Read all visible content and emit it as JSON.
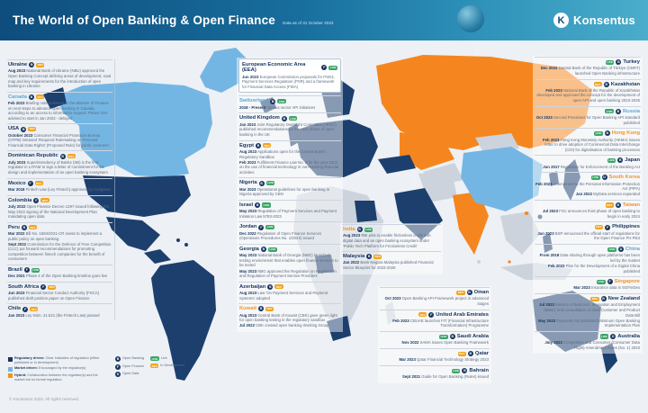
{
  "header": {
    "title": "The World of Open Banking & Open Finance",
    "subtitle": "Data as of 31 October 2023",
    "brand": "Konsentus",
    "brand_initial": "K"
  },
  "footer": "© Konsentus 2023. All rights reserved.",
  "colors": {
    "regulatory": "#16355f",
    "market": "#5aa7dc",
    "hybrid": "#f0941f",
    "live": "#3ba568",
    "development": "#f2a41f",
    "header_blue": "#0e4d7d",
    "map_orange": "#f5861f",
    "map_navy": "#1c3f6e",
    "map_light_blue": "#74b6e3"
  },
  "legend": {
    "drivers": [
      {
        "label": "Regulatory driven:",
        "desc": "Clear indication of regulation (either published or in development)",
        "color": "#16355f"
      },
      {
        "label": "Market driven:",
        "desc": "Encouraged by the regulator(s)",
        "color": "#74b6e3"
      },
      {
        "label": "Hybrid:",
        "desc": "Collaboration between the regulator(s) and the market but no formal regulation",
        "color": "#f0941f"
      }
    ],
    "types": [
      {
        "label": "Open Banking",
        "abbr": "B"
      },
      {
        "label": "Open Finance",
        "abbr": "F"
      },
      {
        "label": "Open Data",
        "abbr": "D"
      }
    ],
    "statuses": [
      {
        "label": "Live",
        "abbr": "LIVE",
        "color": "#3ba568"
      },
      {
        "label": "In Development",
        "abbr": "DEV",
        "color": "#f2a41f"
      }
    ]
  },
  "columns": {
    "left": [
      {
        "name": "Ukraine",
        "driver": "regulatory",
        "type": "B",
        "status": "In Development",
        "lines": [
          {
            "d": "Aug 2023",
            "t": "National Bank of Ukraine (NBU) approved the Open Banking Concept defining areas of development, road map and key requirements for the introduction of open banking in Ukraine"
          }
        ]
      },
      {
        "name": "Canada",
        "driver": "market",
        "type": "B",
        "status": "In Development",
        "lines": [
          {
            "d": "Feb 2023",
            "t": "Briefing note delivered to the Minister of Finance on next steps to advance open banking in Canada, according to an access to information request. Phase One advised to start in Jan 2023 - delayed"
          }
        ]
      },
      {
        "name": "USA",
        "driver": "regulatory",
        "type": "B",
        "status": "In Development",
        "lines": [
          {
            "d": "October 2023",
            "t": "Consumer Financial Protection Bureau (CFPB) released 'Required Rulemaking on Personal Financial Data Rights' (Proposed Rule) for public comment"
          }
        ]
      },
      {
        "name": "Dominican Republic",
        "driver": "regulatory",
        "type": "B",
        "status": "In Development",
        "lines": [
          {
            "d": "July 2023",
            "t": "Superintendency of Banks (SB) is the first regulator in LATAM to sign a letter of commitment for the design and implementation of an open banking ecosystem"
          }
        ]
      },
      {
        "name": "Mexico",
        "driver": "regulatory",
        "type": "F",
        "status": "In Development",
        "lines": [
          {
            "d": "Mar 2018",
            "t": "Fintech Law (Ley Fintech) approved by Congress"
          }
        ]
      },
      {
        "name": "Colombia",
        "driver": "regulatory",
        "type": "F",
        "status": "In Development",
        "lines": [
          {
            "d": "July 2022",
            "t": "Open Finance Decree 1297 issued following the May 2022 signing of the National Development Plan mandating open data"
          }
        ]
      },
      {
        "name": "Peru",
        "driver": "regulatory",
        "type": "B",
        "status": "In Development",
        "lines": [
          {
            "d": "Mar 2022",
            "t": "Bill No. 1584/2021-CR seeks to implement a public policy on open banking"
          },
          {
            "d": "Sept 2022",
            "t": "Commission for the Defence of Free Competition (CLC) put forward recommendations for promoting competition between fintech companies for the benefit of consumers"
          }
        ]
      },
      {
        "name": "Brazil",
        "driver": "regulatory",
        "type": "F",
        "status": "Live",
        "lines": [
          {
            "d": "Dec 2021",
            "t": "Phase 4 of the Open Banking timeline goes live"
          }
        ]
      },
      {
        "name": "South Africa",
        "driver": "regulatory",
        "type": "F",
        "status": "In Development",
        "lines": [
          {
            "d": "Jun 2023",
            "t": "Financial Sector Conduct Authority (FSCA) published draft position paper on Open Finance"
          }
        ]
      },
      {
        "name": "Chile",
        "driver": "regulatory",
        "type": "F",
        "status": "In Development",
        "lines": [
          {
            "d": "Jan 2023",
            "t": "Ley Núm. 21.521 (the Fintech Law) passed"
          }
        ]
      }
    ],
    "center": [
      {
        "name": "European Economic Area (EEA)",
        "driver": "regulatory",
        "type": "F",
        "status": "Live",
        "card": true,
        "lines": [
          {
            "d": "Jun 2023",
            "t": "European Commission proposals for PSD3, Payment Services Regulation (PSR) and a framework for Financial Data Access (FIDA)"
          }
        ]
      },
      {
        "name": "Switzerland",
        "driver": "market",
        "type": "B",
        "status": "Live",
        "lines": [
          {
            "d": "2018 - Present",
            "t": "Various sector API initiatives"
          }
        ]
      },
      {
        "name": "United Kingdom",
        "driver": "regulatory",
        "type": "B",
        "status": "Live",
        "lines": [
          {
            "d": "Jan 2023",
            "t": "Joint Regulatory Oversight Committee (JROC) published recommendations for the next phase of open banking in the UK"
          }
        ]
      },
      {
        "name": "Egypt",
        "driver": "regulatory",
        "type": "B",
        "status": "In Development",
        "lines": [
          {
            "d": "Aug 2023",
            "t": "Applications open for the Central Bank's Regulatory Sandbox"
          },
          {
            "d": "Feb 2023",
            "t": "Fulfilment Finance Law No. 5 for the year 2022 on the use of financial technology in non-banking financial activities"
          }
        ]
      },
      {
        "name": "Nigeria",
        "driver": "regulatory",
        "type": "B",
        "status": "Live",
        "lines": [
          {
            "d": "Mar 2023",
            "t": "Operational guidelines for open banking in Nigeria approved by CBN"
          }
        ]
      },
      {
        "name": "Israel",
        "driver": "regulatory",
        "type": "B",
        "status": "Live",
        "lines": [
          {
            "d": "May 2023",
            "t": "Regulation of Payment Services and Payment Initiation Law 5783-2023"
          }
        ]
      },
      {
        "name": "Jordan",
        "driver": "regulatory",
        "type": "F",
        "status": "Live",
        "lines": [
          {
            "d": "Dec 2022",
            "t": "Regulation of Open Finance Services (Operations Procedures No. 1/2022) issued"
          }
        ]
      },
      {
        "name": "Georgia",
        "driver": "regulatory",
        "type": "B",
        "status": "Live",
        "lines": [
          {
            "d": "May 2023",
            "t": "National Bank of Georgia (NBG) launched testing environment that enables open finance services to be tested"
          },
          {
            "d": "May 2023",
            "t": "NBG approved the Regulation on Registration and Regulation of Payment Service Providers"
          }
        ]
      },
      {
        "name": "Azerbaijan",
        "driver": "regulatory",
        "type": "B",
        "status": "In Development",
        "lines": [
          {
            "d": "Aug 2023",
            "t": "Law 'On Payment Services and Payment Systems' adopted"
          }
        ]
      },
      {
        "name": "Kuwait",
        "driver": "hybrid",
        "type": "B",
        "status": "In Development",
        "lines": [
          {
            "d": "Aug 2023",
            "t": "Central Bank of Kuwait (CBK) gave green light for open banking testing in the regulatory sandbox"
          },
          {
            "d": "Jul 2022",
            "t": "CBK created open banking Working Group"
          }
        ]
      }
    ],
    "south_asia": [
      {
        "name": "India",
        "driver": "hybrid",
        "type": "B",
        "status": "Live",
        "lines": [
          {
            "d": "Aug 2023",
            "t": "RBI pilot to enable frictionless credit with digital data and an open banking ecosystem under 'Public Tech Platform for Frictionless Credit'"
          }
        ]
      },
      {
        "name": "Malaysia",
        "driver": "regulatory",
        "type": "B",
        "status": "In Development",
        "lines": [
          {
            "d": "Jan 2022",
            "t": "Bank Negara Malaysia published Financial Sector Blueprint for 2022-2026"
          }
        ]
      }
    ],
    "gulf": [
      {
        "name": "Oman",
        "driver": "regulatory",
        "type": "B",
        "status": "In Development",
        "lines": [
          {
            "d": "Oct 2023",
            "t": "Open Banking API Framework project in advanced stages"
          }
        ]
      },
      {
        "name": "United Arab Emirates",
        "driver": "regulatory",
        "type": "F",
        "status": "In Development",
        "lines": [
          {
            "d": "Feb 2023",
            "t": "CBUAE launches FIT (Financial Infrastructure Transformation) Programme"
          }
        ]
      },
      {
        "name": "Saudi Arabia",
        "driver": "regulatory",
        "type": "B",
        "status": "Live",
        "lines": [
          {
            "d": "Nov 2022",
            "t": "SAMA issues Open Banking Framework"
          }
        ]
      },
      {
        "name": "Qatar",
        "driver": "regulatory",
        "type": "B",
        "status": "In Development",
        "lines": [
          {
            "d": "Mar 2023",
            "t": "Qatar Financial Technology Strategy 2023"
          }
        ]
      },
      {
        "name": "Bahrain",
        "driver": "regulatory",
        "type": "B",
        "status": "Live",
        "lines": [
          {
            "d": "Sept 2021",
            "t": "Guide for Open Banking (Rules) issued"
          }
        ]
      }
    ],
    "east": [
      {
        "name": "Turkey",
        "driver": "regulatory",
        "type": "B",
        "status": "Live",
        "lines": [
          {
            "d": "Dec 2022",
            "t": "Central Bank of the Republic of Türkiye (CBRT) launched Open Banking infrastructure"
          }
        ]
      },
      {
        "name": "Kazakhstan",
        "driver": "regulatory",
        "type": "B",
        "status": "In Development",
        "lines": [
          {
            "d": "Feb 2023",
            "t": "National Bank of the Republic of Kazakhstan developed and approved the concept for the development of open API and open banking 2023-2025"
          }
        ]
      },
      {
        "name": "Russia",
        "driver": "market",
        "type": "B",
        "status": "Live",
        "lines": [
          {
            "d": "Oct 2023",
            "t": "Second Provisions for Open Banking API standard published"
          }
        ]
      },
      {
        "name": "Hong Kong",
        "driver": "hybrid",
        "type": "B",
        "status": "Live",
        "lines": [
          {
            "d": "Feb 2023",
            "t": "Hong Kong Monetary Authority (HKMA) issues letter to drive adoption of Commercial Data Interchange (CDI) for digitalisation of banking processes"
          }
        ]
      },
      {
        "name": "Japan",
        "driver": "regulatory",
        "type": "B",
        "status": "Live",
        "lines": [
          {
            "d": "Jun 2017",
            "t": "Regulation for Enforcement of the Banking Act"
          }
        ]
      },
      {
        "name": "South Korea",
        "driver": "hybrid",
        "type": "D",
        "status": "Live",
        "lines": [
          {
            "d": "Feb 2023",
            "t": "Amendment to the Personal Information Protection Act (PIPA)"
          },
          {
            "d": "Jan 2022",
            "t": "MyData services expanded"
          }
        ]
      },
      {
        "name": "Taiwan",
        "driver": "hybrid",
        "type": "B",
        "status": "In Development",
        "lines": [
          {
            "d": "Jul 2023",
            "t": "FSC announces third phase of open banking to begin in early 2024"
          }
        ]
      },
      {
        "name": "Philippines",
        "driver": "regulatory",
        "type": "F",
        "status": "In Development",
        "lines": [
          {
            "d": "Jan 2023",
            "t": "BSP announced the official start of regulations for the Open Finance PH Pilot"
          }
        ]
      },
      {
        "name": "China",
        "driver": "market",
        "type": "D",
        "status": "Live",
        "lines": [
          {
            "d": "From 2018",
            "t": "Data sharing through open platforms has been led by the market"
          },
          {
            "d": "Feb 2023",
            "t": "Plan for the Development of a Digital China published"
          }
        ]
      },
      {
        "name": "Singapore",
        "driver": "hybrid",
        "type": "F",
        "status": "Live",
        "lines": [
          {
            "d": "Mar 2023",
            "t": "Insurance data in SGFinDex"
          }
        ]
      },
      {
        "name": "New Zealand",
        "driver": "regulatory",
        "type": "B",
        "status": "In Development",
        "lines": [
          {
            "d": "Jul 2023",
            "t": "Ministry of Business, Innovation and Employment (MBIE) held consultation on draft Customer and Product Data Bill"
          },
          {
            "d": "May 2023",
            "t": "Payments NZ published Minimum Open Banking Implementation Plan"
          }
        ]
      },
      {
        "name": "Australia",
        "driver": "regulatory",
        "type": "D",
        "status": "Live",
        "lines": [
          {
            "d": "July 2023",
            "t": "Competition and Consumer (Consumer Data Right) Amendment Rules (No. 1) 2023"
          }
        ]
      }
    ]
  }
}
